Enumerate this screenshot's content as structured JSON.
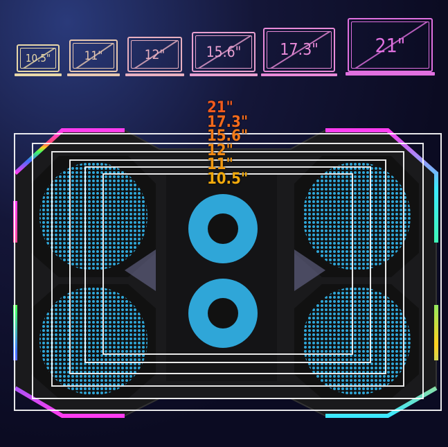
{
  "screen_sizes": [
    {
      "label": "10.5\"",
      "color": "#e8d8a8"
    },
    {
      "label": "11\"",
      "color": "#e8c8b0"
    },
    {
      "label": "12\"",
      "color": "#e8b0c0"
    },
    {
      "label": "15.6\"",
      "color": "#e8a0d0"
    },
    {
      "label": "17.3\"",
      "color": "#e88ad8"
    },
    {
      "label": "21\"",
      "color": "#e070e0"
    }
  ],
  "pad_sizes": [
    {
      "label": "21\"",
      "color": "#f05a1e"
    },
    {
      "label": "17.3\"",
      "color": "#f26a1c"
    },
    {
      "label": "15.6\"",
      "color": "#f27a18"
    },
    {
      "label": "12\"",
      "color": "#f28a14"
    },
    {
      "label": "11\"",
      "color": "#f29a10"
    },
    {
      "label": "10.5\"",
      "color": "#f2aa0c"
    }
  ],
  "colors": {
    "fan": "#2fa6d8",
    "pad": "#1a1a1c",
    "rgb_pink": "#ff3cf0",
    "rgb_cyan": "#3ce8ff"
  }
}
